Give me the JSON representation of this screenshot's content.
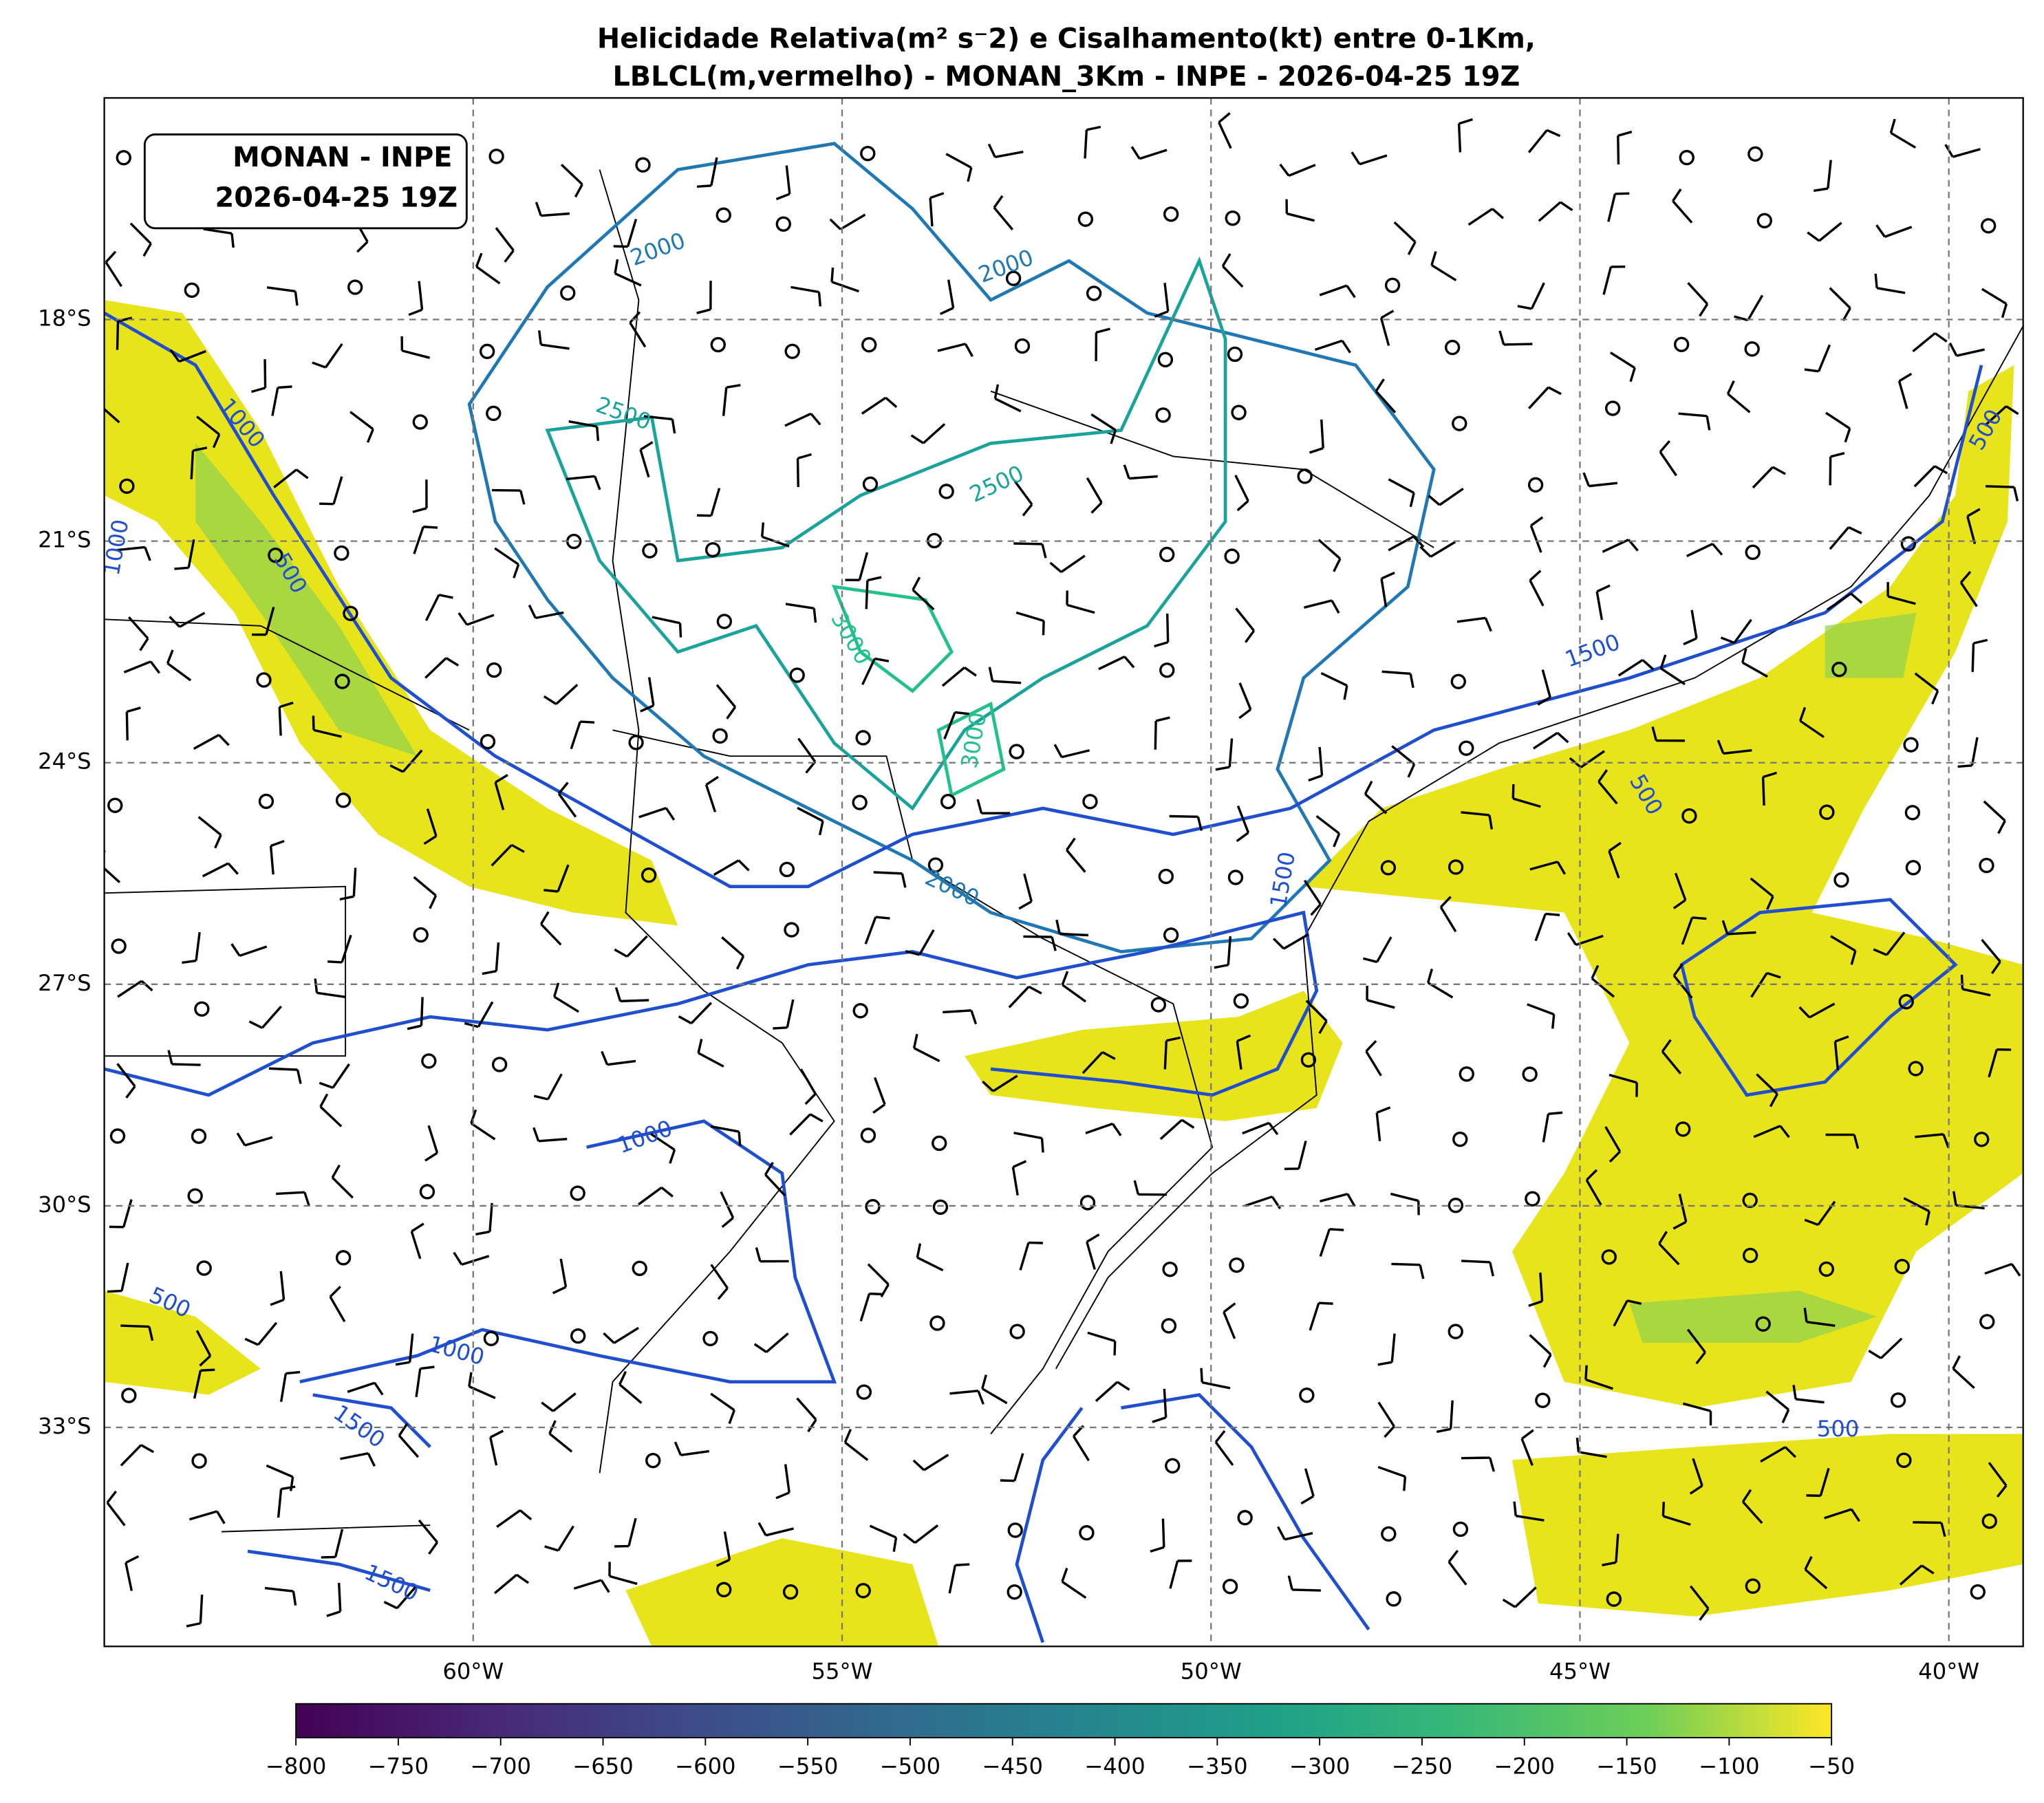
{
  "header": {
    "title_lines": [
      "Helicidade Relativa(m² s⁻2) e Cisalhamento(kt) entre 0-1Km,",
      "LBLCL(m,vermelho) - MONAN_3Km - INPE - 2026-04-25 19Z"
    ]
  },
  "label_box": {
    "lines": [
      "MONAN - INPE",
      "2026-04-25 19Z"
    ]
  },
  "map": {
    "lat_ticks": [
      {
        "value": -18,
        "label": "18°S"
      },
      {
        "value": -21,
        "label": "21°S"
      },
      {
        "value": -24,
        "label": "24°S"
      },
      {
        "value": -27,
        "label": "27°S"
      },
      {
        "value": -30,
        "label": "30°S"
      },
      {
        "value": -33,
        "label": "33°S"
      }
    ],
    "lon_ticks": [
      {
        "value": -60,
        "label": "60°W"
      },
      {
        "value": -55,
        "label": "55°W"
      },
      {
        "value": -50,
        "label": "50°W"
      },
      {
        "value": -45,
        "label": "45°W"
      },
      {
        "value": -40,
        "label": "40°W"
      }
    ],
    "contour_labels": [
      2000,
      2000,
      2500,
      2500,
      3000,
      3000,
      2000,
      1500,
      1500,
      500,
      500,
      1000,
      1000,
      500,
      1000,
      1000,
      500,
      1500,
      1500,
      500
    ]
  },
  "colorbar": {
    "lim": [
      -800,
      -50
    ],
    "ticks": [
      {
        "value": -800,
        "label": "−800"
      },
      {
        "value": -750,
        "label": "−750"
      },
      {
        "value": -700,
        "label": "−700"
      },
      {
        "value": -650,
        "label": "−650"
      },
      {
        "value": -600,
        "label": "−600"
      },
      {
        "value": -550,
        "label": "−550"
      },
      {
        "value": -500,
        "label": "−500"
      },
      {
        "value": -450,
        "label": "−450"
      },
      {
        "value": -400,
        "label": "−400"
      },
      {
        "value": -350,
        "label": "−350"
      },
      {
        "value": -300,
        "label": "−300"
      },
      {
        "value": -250,
        "label": "−250"
      },
      {
        "value": -200,
        "label": "−200"
      },
      {
        "value": -150,
        "label": "−150"
      },
      {
        "value": -100,
        "label": "−100"
      },
      {
        "value": -50,
        "label": "−50"
      }
    ]
  }
}
